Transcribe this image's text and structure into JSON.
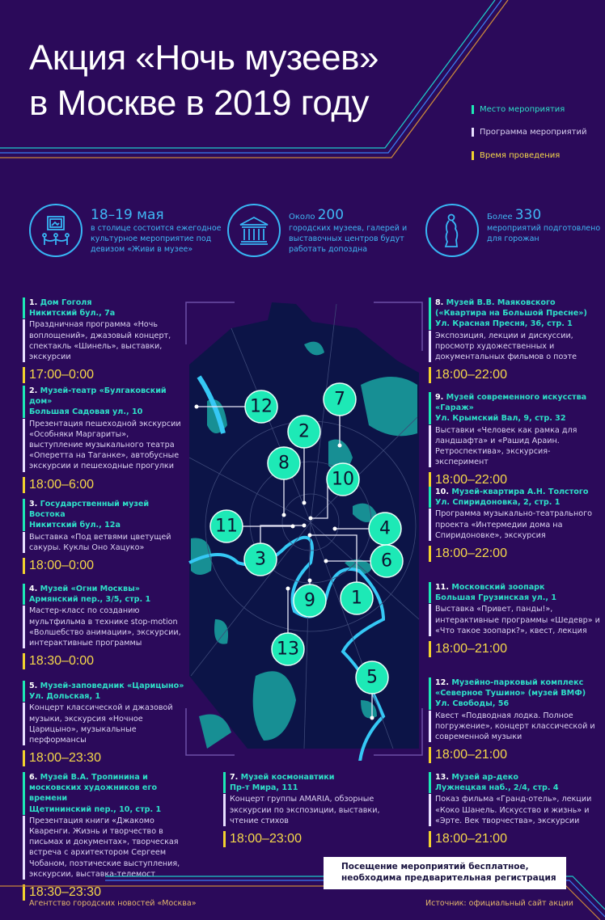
{
  "title": {
    "line1": "Акция «Ночь музеев»",
    "line2": "в Москве в 2019 году"
  },
  "legend": [
    {
      "label": "Место мероприятия",
      "color": "#1de9b6"
    },
    {
      "label": "Программа мероприятий",
      "color": "#e8e0ff"
    },
    {
      "label": "Время проведения",
      "color": "#f2d22e"
    }
  ],
  "stats": [
    {
      "icon": "museum-exhibit-icon",
      "prefix": "",
      "big": "18–19 мая",
      "text": "в столице состоится ежегодное культурное мероприятие под девизом «Живи в музее»"
    },
    {
      "icon": "museum-building-icon",
      "prefix": "Около",
      "big": "200",
      "text": "городских музеев, галерей и выставочных центров будут работать допоздна"
    },
    {
      "icon": "statue-icon",
      "prefix": "Более",
      "big": "330",
      "text": "мероприятий подготовлено для горожан"
    }
  ],
  "events": [
    {
      "num": "1.",
      "name": "Дом Гоголя",
      "address": "Никитский бул., 7а",
      "desc": "Праздничная программа «Ночь воплощений», джазовый концерт, спектакль «Шинель», выставки, экскурсии",
      "time": "17:00–0:00"
    },
    {
      "num": "2.",
      "name": "Музей-театр «Булгаковский дом»",
      "address": "Большая Садовая ул., 10",
      "desc": "Презентация пешеходной экскурсии «Особняки Маргариты», выступление музыкального театра «Оперетта на Таганке», автобусные экскурсии и пешеходные прогулки",
      "time": "18:00–6:00"
    },
    {
      "num": "3.",
      "name": "Государственный музей Востока",
      "address": "Никитский бул., 12а",
      "desc": "Выставка «Под ветвями цветущей сакуры. Куклы Оно Хацуко»",
      "time": "18:00–0:00"
    },
    {
      "num": "4.",
      "name": "Музей «Огни Москвы»",
      "address": "Армянский пер., 3/5, стр. 1",
      "desc": "Мастер-класс по созданию мультфильма в технике stop-motion «Волшебство анимации», экскурсии, интерактивные программы",
      "time": "18:30–0:00"
    },
    {
      "num": "5.",
      "name": "Музей-заповедник «Царицыно»",
      "address": "Ул. Дольская, 1",
      "desc": "Концерт классической и джазовой музыки, экскурсия «Ночное Царицыно», музыкальные перформансы",
      "time": "18:00–23:30"
    },
    {
      "num": "6.",
      "name": "Музей В.А. Тропинина и московских художников его времени",
      "address": "Щетининский пер., 10, стр. 1",
      "desc": "Презентация книги «Джакомо Кваренги. Жизнь и творчество в письмах и документах», творческая встреча с архитектором Сергеем Чобаном, поэтические выступления, экскурсии, выставка-телемост",
      "time": "18:30–23:30"
    },
    {
      "num": "7.",
      "name": "Музей космонавтики",
      "address": "Пр-т Мира, 111",
      "desc": "Концерт группы AMARIA, обзорные экскурсии по экспозиции, выставки, чтение стихов",
      "time": "18:00–23:00"
    },
    {
      "num": "8.",
      "name": "Музей В.В. Маяковского («Квартира на Большой Пресне»)",
      "address": "Ул. Красная Пресня, 36, стр. 1",
      "desc": "Экспозиция, лекции и дискуссии, просмотр художественных и документальных фильмов о поэте",
      "time": "18:00–22:00"
    },
    {
      "num": "9.",
      "name": "Музей современного искусства «Гараж»",
      "address": "Ул. Крымский Вал, 9, стр. 32",
      "desc": "Выставки «Человек как рамка для ландшафта» и «Рашид Араин. Ретроспектива», экскурсия-эксперимент",
      "time": "18:00–22:00"
    },
    {
      "num": "10.",
      "name": "Музей-квартира А.Н. Толстого",
      "address": "Ул. Спиридоновка, 2, стр. 1",
      "desc": "Программа музыкально-театрального проекта «Интермедии дома на Спиридоновке», экскурсия",
      "time": "18:00–22:00"
    },
    {
      "num": "11.",
      "name": "Московский зоопарк",
      "address": "Большая Грузинская ул., 1",
      "desc": "Выставка «Привет, панды!», интерактивные программы «Шедевр» и «Что такое зоопарк?», квест, лекция",
      "time": "18:00–21:00"
    },
    {
      "num": "12.",
      "name": "Музейно-парковый комплекс «Северное Тушино» (музей ВМФ)",
      "address": "Ул. Свободы, 56",
      "desc": "Квест «Подводная лодка. Полное погружение», концерт классической и современной музыки",
      "time": "18:00–21:00"
    },
    {
      "num": "13.",
      "name": "Музей ар-деко",
      "address": "Лужнецкая наб., 2/4, стр. 4",
      "desc": "Показ фильма «Гранд-отель», лекции «Коко Шанель. Искусство и жизнь» и «Эрте. Век творчества», экскурсии",
      "time": "18:00–21:00"
    }
  ],
  "map_markers": [
    "1",
    "2",
    "3",
    "4",
    "5",
    "6",
    "7",
    "8",
    "9",
    "10",
    "11",
    "12",
    "13"
  ],
  "notice": {
    "line1": "Посещение мероприятий бесплатное,",
    "line2": "необходима предварительная регистрация"
  },
  "footer": {
    "agency": "Агентство городских новостей «Москва»",
    "source": "Источник: официальный сайт акции"
  },
  "colors": {
    "background": "#2b0a5a",
    "place": "#1de9b6",
    "program": "#e8e0ff",
    "time": "#f2d22e",
    "accent_blue": "#38b6f5",
    "map": "#0c1447"
  }
}
